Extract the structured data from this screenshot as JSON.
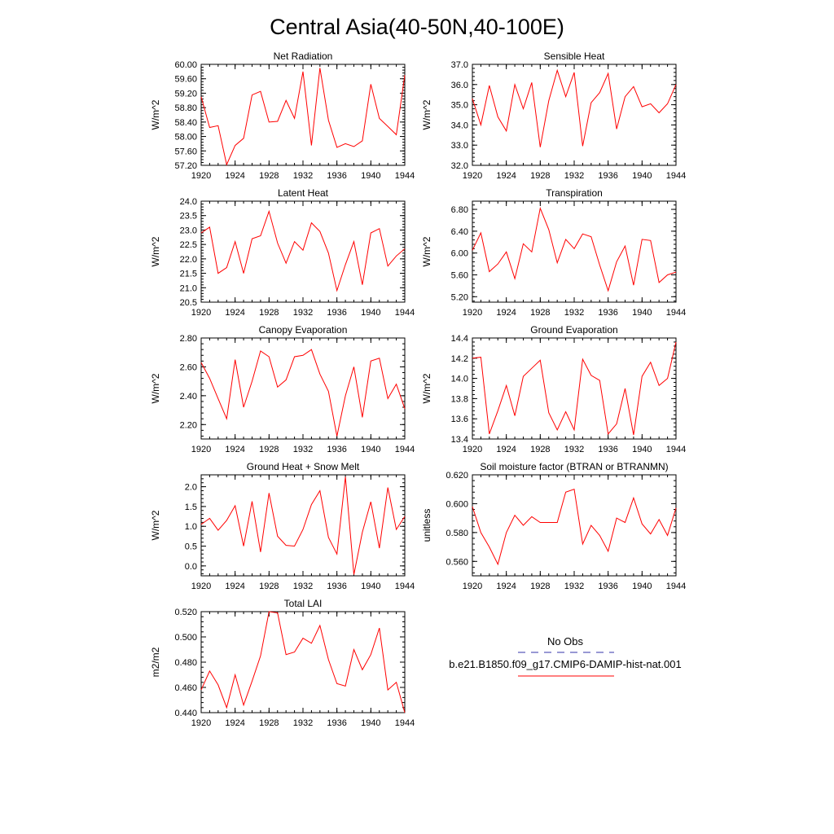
{
  "title": "Central Asia(40-50N,40-100E)",
  "series_color": "#ff0000",
  "obs_color": "#3333aa",
  "legend": {
    "obs_label": "No Obs",
    "model_label": "b.e21.B1850.f09_g17.CMIP6-DAMIP-hist-nat.001"
  },
  "chart_data": [
    {
      "type": "line",
      "title": "Net Radiation",
      "ylabel": "W/m^2",
      "xlim": [
        1920,
        1944
      ],
      "ylim": [
        57.2,
        60.0
      ],
      "xticks": [
        1920,
        1924,
        1928,
        1932,
        1936,
        1940,
        1944
      ],
      "yticks": [
        "57.20",
        "57.60",
        "58.00",
        "58.40",
        "58.80",
        "59.20",
        "59.60",
        "60.00"
      ],
      "x": [
        1920,
        1921,
        1922,
        1923,
        1924,
        1925,
        1926,
        1927,
        1928,
        1929,
        1930,
        1931,
        1932,
        1933,
        1934,
        1935,
        1936,
        1937,
        1938,
        1939,
        1940,
        1941,
        1942,
        1943,
        1944
      ],
      "values": [
        59.1,
        58.25,
        58.3,
        57.22,
        57.75,
        57.95,
        59.15,
        59.25,
        58.4,
        58.42,
        59.0,
        58.5,
        59.8,
        57.75,
        59.9,
        58.45,
        57.7,
        57.8,
        57.72,
        57.88,
        59.45,
        58.5,
        58.28,
        58.05,
        59.7
      ]
    },
    {
      "type": "line",
      "title": "Sensible Heat",
      "ylabel": "W/m^2",
      "xlim": [
        1920,
        1944
      ],
      "ylim": [
        32.0,
        37.0
      ],
      "xticks": [
        1920,
        1924,
        1928,
        1932,
        1936,
        1940,
        1944
      ],
      "yticks": [
        "32.0",
        "33.0",
        "34.0",
        "35.0",
        "36.0",
        "37.0"
      ],
      "x": [
        1920,
        1921,
        1922,
        1923,
        1924,
        1925,
        1926,
        1927,
        1928,
        1929,
        1930,
        1931,
        1932,
        1933,
        1934,
        1935,
        1936,
        1937,
        1938,
        1939,
        1940,
        1941,
        1942,
        1943,
        1944
      ],
      "values": [
        35.3,
        34.0,
        35.95,
        34.4,
        33.7,
        36.0,
        34.8,
        36.1,
        32.9,
        35.2,
        36.7,
        35.4,
        36.6,
        32.95,
        35.1,
        35.6,
        36.55,
        33.8,
        35.4,
        35.9,
        34.9,
        35.05,
        34.6,
        35.05,
        36.0
      ]
    },
    {
      "type": "line",
      "title": "Latent Heat",
      "ylabel": "W/m^2",
      "xlim": [
        1920,
        1944
      ],
      "ylim": [
        20.5,
        24.0
      ],
      "xticks": [
        1920,
        1924,
        1928,
        1932,
        1936,
        1940,
        1944
      ],
      "yticks": [
        "20.5",
        "21.0",
        "21.5",
        "22.0",
        "22.5",
        "23.0",
        "23.5",
        "24.0"
      ],
      "x": [
        1920,
        1921,
        1922,
        1923,
        1924,
        1925,
        1926,
        1927,
        1928,
        1929,
        1930,
        1931,
        1932,
        1933,
        1934,
        1935,
        1936,
        1937,
        1938,
        1939,
        1940,
        1941,
        1942,
        1943,
        1944
      ],
      "values": [
        22.9,
        23.1,
        21.5,
        21.7,
        22.6,
        21.5,
        22.7,
        22.8,
        23.65,
        22.55,
        21.85,
        22.6,
        22.3,
        23.25,
        22.95,
        22.2,
        20.9,
        21.8,
        22.6,
        21.1,
        22.9,
        23.05,
        21.75,
        22.1,
        22.35
      ]
    },
    {
      "type": "line",
      "title": "Transpiration",
      "ylabel": "W/m^2",
      "xlim": [
        1920,
        1944
      ],
      "ylim": [
        5.1,
        6.95
      ],
      "xticks": [
        1920,
        1924,
        1928,
        1932,
        1936,
        1940,
        1944
      ],
      "yticks": [
        "5.20",
        "5.60",
        "6.00",
        "6.40",
        "6.80"
      ],
      "x": [
        1920,
        1921,
        1922,
        1923,
        1924,
        1925,
        1926,
        1927,
        1928,
        1929,
        1930,
        1931,
        1932,
        1933,
        1934,
        1935,
        1936,
        1937,
        1938,
        1939,
        1940,
        1941,
        1942,
        1943,
        1944
      ],
      "values": [
        6.05,
        6.37,
        5.66,
        5.8,
        6.02,
        5.53,
        6.17,
        6.02,
        6.82,
        6.43,
        5.82,
        6.25,
        6.08,
        6.35,
        6.3,
        5.78,
        5.31,
        5.84,
        6.13,
        5.41,
        6.25,
        6.23,
        5.46,
        5.6,
        5.65
      ]
    },
    {
      "type": "line",
      "title": "Canopy Evaporation",
      "ylabel": "W/m^2",
      "xlim": [
        1920,
        1944
      ],
      "ylim": [
        2.1,
        2.8
      ],
      "xticks": [
        1920,
        1924,
        1928,
        1932,
        1936,
        1940,
        1944
      ],
      "yticks": [
        "2.20",
        "2.40",
        "2.60",
        "2.80"
      ],
      "x": [
        1920,
        1921,
        1922,
        1923,
        1924,
        1925,
        1926,
        1927,
        1928,
        1929,
        1930,
        1931,
        1932,
        1933,
        1934,
        1935,
        1936,
        1937,
        1938,
        1939,
        1940,
        1941,
        1942,
        1943,
        1944
      ],
      "values": [
        2.63,
        2.52,
        2.38,
        2.24,
        2.65,
        2.32,
        2.5,
        2.71,
        2.67,
        2.46,
        2.51,
        2.67,
        2.68,
        2.72,
        2.55,
        2.43,
        2.12,
        2.4,
        2.6,
        2.25,
        2.64,
        2.66,
        2.38,
        2.48,
        2.31
      ]
    },
    {
      "type": "line",
      "title": "Ground Evaporation",
      "ylabel": "W/m^2",
      "xlim": [
        1920,
        1944
      ],
      "ylim": [
        13.4,
        14.4
      ],
      "xticks": [
        1920,
        1924,
        1928,
        1932,
        1936,
        1940,
        1944
      ],
      "yticks": [
        "13.4",
        "13.6",
        "13.8",
        "14.0",
        "14.2",
        "14.4"
      ],
      "x": [
        1920,
        1921,
        1922,
        1923,
        1924,
        1925,
        1926,
        1927,
        1928,
        1929,
        1930,
        1931,
        1932,
        1933,
        1934,
        1935,
        1936,
        1937,
        1938,
        1939,
        1940,
        1941,
        1942,
        1943,
        1944
      ],
      "values": [
        14.2,
        14.21,
        13.45,
        13.68,
        13.93,
        13.63,
        14.02,
        14.1,
        14.18,
        13.66,
        13.49,
        13.67,
        13.49,
        14.19,
        14.03,
        13.98,
        13.45,
        13.55,
        13.9,
        13.44,
        14.02,
        14.16,
        13.93,
        14.0,
        14.36
      ]
    },
    {
      "type": "line",
      "title": "Ground Heat + Snow Melt",
      "ylabel": "W/m^2",
      "xlim": [
        1920,
        1944
      ],
      "ylim": [
        -0.25,
        2.3
      ],
      "xticks": [
        1920,
        1924,
        1928,
        1932,
        1936,
        1940,
        1944
      ],
      "yticks": [
        "0.0",
        "0.5",
        "1.0",
        "1.5",
        "2.0"
      ],
      "x": [
        1920,
        1921,
        1922,
        1923,
        1924,
        1925,
        1926,
        1927,
        1928,
        1929,
        1930,
        1931,
        1932,
        1933,
        1934,
        1935,
        1936,
        1937,
        1938,
        1939,
        1940,
        1941,
        1942,
        1943,
        1944
      ],
      "values": [
        1.05,
        1.2,
        0.9,
        1.15,
        1.52,
        0.5,
        1.63,
        0.35,
        1.84,
        0.75,
        0.52,
        0.5,
        0.92,
        1.55,
        1.9,
        0.72,
        0.3,
        2.25,
        -0.22,
        0.85,
        1.62,
        0.45,
        1.98,
        0.92,
        1.25
      ]
    },
    {
      "type": "line",
      "title": "Soil moisture factor (BTRAN or BTRANMN)",
      "ylabel": "unitless",
      "xlim": [
        1920,
        1944
      ],
      "ylim": [
        0.55,
        0.62
      ],
      "xticks": [
        1920,
        1924,
        1928,
        1932,
        1936,
        1940,
        1944
      ],
      "yticks": [
        "0.560",
        "0.580",
        "0.600",
        "0.620"
      ],
      "x": [
        1920,
        1921,
        1922,
        1923,
        1924,
        1925,
        1926,
        1927,
        1928,
        1929,
        1930,
        1931,
        1932,
        1933,
        1934,
        1935,
        1936,
        1937,
        1938,
        1939,
        1940,
        1941,
        1942,
        1943,
        1944
      ],
      "values": [
        0.598,
        0.58,
        0.57,
        0.558,
        0.58,
        0.592,
        0.585,
        0.591,
        0.587,
        0.587,
        0.587,
        0.608,
        0.61,
        0.572,
        0.585,
        0.578,
        0.567,
        0.59,
        0.587,
        0.604,
        0.586,
        0.579,
        0.589,
        0.578,
        0.597
      ]
    },
    {
      "type": "line",
      "title": "Total LAI",
      "ylabel": "m2/m2",
      "xlim": [
        1920,
        1944
      ],
      "ylim": [
        0.44,
        0.52
      ],
      "xticks": [
        1920,
        1924,
        1928,
        1932,
        1936,
        1940,
        1944
      ],
      "yticks": [
        "0.440",
        "0.460",
        "0.480",
        "0.500",
        "0.520"
      ],
      "x": [
        1920,
        1921,
        1922,
        1923,
        1924,
        1925,
        1926,
        1927,
        1928,
        1929,
        1930,
        1931,
        1932,
        1933,
        1934,
        1935,
        1936,
        1937,
        1938,
        1939,
        1940,
        1941,
        1942,
        1943,
        1944
      ],
      "values": [
        0.458,
        0.473,
        0.462,
        0.444,
        0.47,
        0.446,
        0.465,
        0.485,
        0.52,
        0.519,
        0.486,
        0.488,
        0.499,
        0.495,
        0.509,
        0.482,
        0.463,
        0.461,
        0.49,
        0.474,
        0.486,
        0.507,
        0.458,
        0.464,
        0.44
      ]
    }
  ]
}
